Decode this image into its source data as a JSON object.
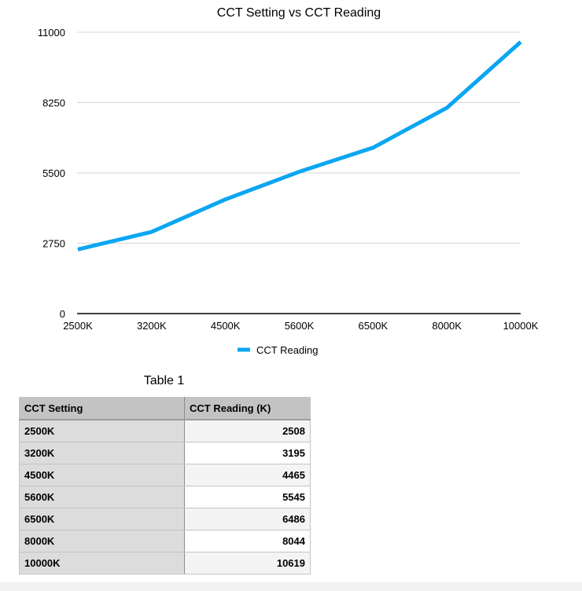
{
  "chart_data": {
    "type": "line",
    "title": "CCT Setting vs CCT Reading",
    "xlabel": "",
    "ylabel": "",
    "categories": [
      "2500K",
      "3200K",
      "4500K",
      "5600K",
      "6500K",
      "8000K",
      "10000K"
    ],
    "series": [
      {
        "name": "CCT Reading",
        "color": "#0aa6f2",
        "values": [
          2508,
          3195,
          4465,
          5545,
          6486,
          8044,
          10619
        ]
      }
    ],
    "ylim": [
      0,
      11000
    ],
    "yticks": [
      "0",
      "2750",
      "5500",
      "8250",
      "11000"
    ],
    "grid": true,
    "legend": "bottom-center"
  },
  "table": {
    "title": "Table 1",
    "headers": [
      "CCT Setting",
      "CCT Reading (K)"
    ],
    "rows": [
      [
        "2500K",
        "2508"
      ],
      [
        "3200K",
        "3195"
      ],
      [
        "4500K",
        "4465"
      ],
      [
        "5600K",
        "5545"
      ],
      [
        "6500K",
        "6486"
      ],
      [
        "8000K",
        "8044"
      ],
      [
        "10000K",
        "10619"
      ]
    ]
  }
}
